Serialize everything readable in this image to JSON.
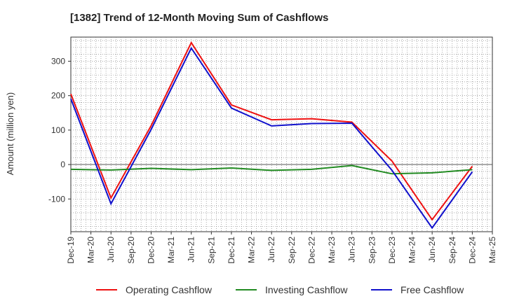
{
  "chart_data": {
    "type": "line",
    "title": "[1382]  Trend of 12-Month Moving Sum of Cashflows",
    "xlabel": "",
    "ylabel": "Amount (million yen)",
    "x": [
      "Dec-19",
      "Mar-20",
      "Jun-20",
      "Sep-20",
      "Dec-20",
      "Mar-21",
      "Jun-21",
      "Sep-21",
      "Dec-21",
      "Mar-22",
      "Jun-22",
      "Sep-22",
      "Dec-22",
      "Mar-23",
      "Jun-23",
      "Sep-23",
      "Dec-23",
      "Mar-24",
      "Jun-24",
      "Sep-24",
      "Dec-24",
      "Mar-25"
    ],
    "ylim": [
      -195,
      370
    ],
    "yticks": [
      300,
      200,
      100,
      0,
      -100
    ],
    "grid": true,
    "legend_position": "bottom",
    "series": [
      {
        "name": "Operating Cashflow",
        "color": "#ee1111",
        "values": [
          205,
          null,
          -97,
          null,
          113,
          null,
          354,
          null,
          173,
          null,
          130,
          null,
          133,
          null,
          123,
          null,
          10,
          null,
          -160,
          null,
          -5,
          null
        ]
      },
      {
        "name": "Investing Cashflow",
        "color": "#228B22",
        "values": [
          -14,
          null,
          -16,
          null,
          -11,
          null,
          -15,
          null,
          -10,
          null,
          -17,
          null,
          -14,
          null,
          -3,
          null,
          -27,
          null,
          -24,
          null,
          -15,
          null
        ]
      },
      {
        "name": "Free Cashflow",
        "color": "#1111cc",
        "values": [
          191,
          null,
          -114,
          null,
          102,
          null,
          338,
          null,
          164,
          null,
          112,
          null,
          119,
          null,
          120,
          null,
          -17,
          null,
          -184,
          null,
          -21,
          null
        ]
      }
    ]
  }
}
